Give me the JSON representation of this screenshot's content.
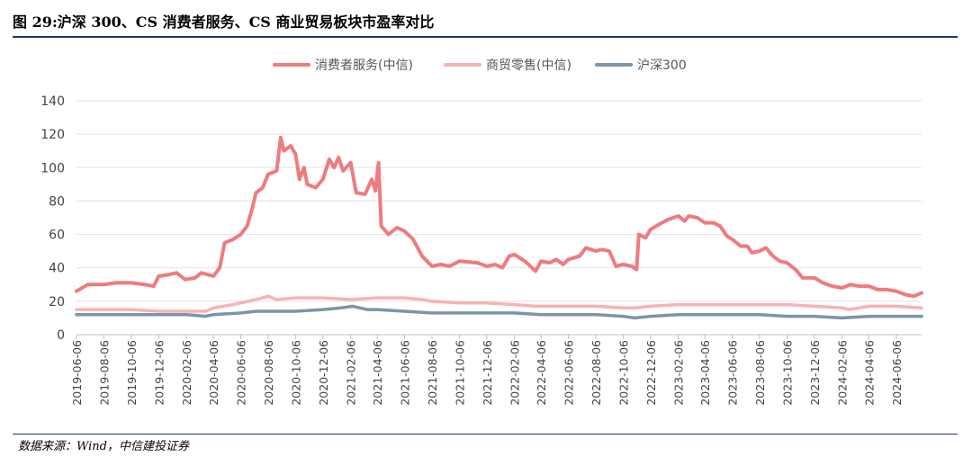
{
  "figure": {
    "title": "图 29:沪深 300、CS 消费者服务、CS 商业贸易板块市盈率对比",
    "source": "数据来源：Wind，中信建投证券"
  },
  "chart_data": {
    "type": "line",
    "title": "图 29:沪深 300、CS 消费者服务、CS 商业贸易板块市盈率对比",
    "xlabel": "",
    "ylabel": "",
    "ylim": [
      0,
      140
    ],
    "yticks": [
      0,
      20,
      40,
      60,
      80,
      100,
      120,
      140
    ],
    "xlim": [
      "2019-06-06",
      "2024-08-01"
    ],
    "xticks": [
      "2019-06-06",
      "2019-08-06",
      "2019-10-06",
      "2019-12-06",
      "2020-02-06",
      "2020-04-06",
      "2020-06-06",
      "2020-08-06",
      "2020-10-06",
      "2020-12-06",
      "2021-02-06",
      "2021-04-06",
      "2021-06-06",
      "2021-08-06",
      "2021-10-06",
      "2021-12-06",
      "2022-02-06",
      "2022-04-06",
      "2022-06-06",
      "2022-08-06",
      "2022-10-06",
      "2022-12-06",
      "2023-02-06",
      "2023-04-06",
      "2023-06-06",
      "2023-08-06",
      "2023-10-06",
      "2023-12-06",
      "2024-02-06",
      "2024-04-06",
      "2024-06-06"
    ],
    "grid": "horizontal",
    "legend_position": "top",
    "series": [
      {
        "name": "消费者服务(中信)",
        "color": "#ee7b7f",
        "points": [
          [
            "2019-06-06",
            26
          ],
          [
            "2019-07-01",
            30
          ],
          [
            "2019-08-06",
            30
          ],
          [
            "2019-09-01",
            31
          ],
          [
            "2019-10-06",
            31
          ],
          [
            "2019-11-05",
            30
          ],
          [
            "2019-11-25",
            29
          ],
          [
            "2019-12-06",
            35
          ],
          [
            "2019-12-31",
            36
          ],
          [
            "2020-01-15",
            37
          ],
          [
            "2020-02-03",
            33
          ],
          [
            "2020-02-25",
            34
          ],
          [
            "2020-03-10",
            37
          ],
          [
            "2020-04-06",
            35
          ],
          [
            "2020-04-20",
            40
          ],
          [
            "2020-05-01",
            55
          ],
          [
            "2020-05-20",
            57
          ],
          [
            "2020-06-06",
            60
          ],
          [
            "2020-06-20",
            65
          ],
          [
            "2020-07-01",
            75
          ],
          [
            "2020-07-10",
            85
          ],
          [
            "2020-07-25",
            88
          ],
          [
            "2020-08-06",
            96
          ],
          [
            "2020-08-25",
            98
          ],
          [
            "2020-09-03",
            118
          ],
          [
            "2020-09-10",
            110
          ],
          [
            "2020-09-25",
            113
          ],
          [
            "2020-10-06",
            108
          ],
          [
            "2020-10-15",
            93
          ],
          [
            "2020-10-25",
            100
          ],
          [
            "2020-11-01",
            90
          ],
          [
            "2020-11-20",
            88
          ],
          [
            "2020-12-06",
            93
          ],
          [
            "2020-12-20",
            105
          ],
          [
            "2020-12-31",
            100
          ],
          [
            "2021-01-10",
            106
          ],
          [
            "2021-01-20",
            98
          ],
          [
            "2021-02-06",
            103
          ],
          [
            "2021-02-18",
            85
          ],
          [
            "2021-03-10",
            84
          ],
          [
            "2021-03-25",
            93
          ],
          [
            "2021-04-02",
            86
          ],
          [
            "2021-04-09",
            103
          ],
          [
            "2021-04-15",
            65
          ],
          [
            "2021-05-01",
            60
          ],
          [
            "2021-05-20",
            64
          ],
          [
            "2021-06-06",
            62
          ],
          [
            "2021-06-25",
            57
          ],
          [
            "2021-07-15",
            47
          ],
          [
            "2021-08-06",
            41
          ],
          [
            "2021-08-25",
            42
          ],
          [
            "2021-09-15",
            41
          ],
          [
            "2021-10-06",
            44
          ],
          [
            "2021-11-15",
            43
          ],
          [
            "2021-12-06",
            41
          ],
          [
            "2021-12-25",
            42
          ],
          [
            "2022-01-10",
            40
          ],
          [
            "2022-01-25",
            47
          ],
          [
            "2022-02-06",
            48
          ],
          [
            "2022-03-01",
            44
          ],
          [
            "2022-03-25",
            38
          ],
          [
            "2022-04-06",
            44
          ],
          [
            "2022-04-25",
            43
          ],
          [
            "2022-05-10",
            45
          ],
          [
            "2022-05-25",
            42
          ],
          [
            "2022-06-06",
            45
          ],
          [
            "2022-07-01",
            47
          ],
          [
            "2022-07-15",
            52
          ],
          [
            "2022-08-06",
            50
          ],
          [
            "2022-08-20",
            51
          ],
          [
            "2022-09-05",
            50
          ],
          [
            "2022-09-20",
            41
          ],
          [
            "2022-10-06",
            42
          ],
          [
            "2022-10-25",
            41
          ],
          [
            "2022-11-05",
            39
          ],
          [
            "2022-11-10",
            60
          ],
          [
            "2022-11-25",
            58
          ],
          [
            "2022-12-06",
            63
          ],
          [
            "2022-12-25",
            66
          ],
          [
            "2023-01-15",
            69
          ],
          [
            "2023-02-06",
            71
          ],
          [
            "2023-02-20",
            68
          ],
          [
            "2023-03-01",
            71
          ],
          [
            "2023-03-20",
            70
          ],
          [
            "2023-04-06",
            67
          ],
          [
            "2023-04-25",
            67
          ],
          [
            "2023-05-10",
            65
          ],
          [
            "2023-05-25",
            59
          ],
          [
            "2023-06-06",
            57
          ],
          [
            "2023-06-25",
            53
          ],
          [
            "2023-07-10",
            53
          ],
          [
            "2023-07-20",
            49
          ],
          [
            "2023-08-06",
            50
          ],
          [
            "2023-08-20",
            52
          ],
          [
            "2023-09-05",
            47
          ],
          [
            "2023-09-20",
            44
          ],
          [
            "2023-10-06",
            43
          ],
          [
            "2023-10-25",
            39
          ],
          [
            "2023-11-10",
            34
          ],
          [
            "2023-12-06",
            34
          ],
          [
            "2023-12-25",
            31
          ],
          [
            "2024-01-15",
            29
          ],
          [
            "2024-02-06",
            28
          ],
          [
            "2024-02-25",
            30
          ],
          [
            "2024-03-15",
            29
          ],
          [
            "2024-04-06",
            29
          ],
          [
            "2024-04-25",
            27
          ],
          [
            "2024-05-15",
            27
          ],
          [
            "2024-06-06",
            26
          ],
          [
            "2024-06-25",
            24
          ],
          [
            "2024-07-15",
            23
          ],
          [
            "2024-08-01",
            25
          ]
        ]
      },
      {
        "name": "商贸零售(中信)",
        "color": "#f7b3b5",
        "points": [
          [
            "2019-06-06",
            15
          ],
          [
            "2019-08-06",
            15
          ],
          [
            "2019-10-06",
            15
          ],
          [
            "2019-12-06",
            14
          ],
          [
            "2020-02-06",
            14
          ],
          [
            "2020-03-20",
            14
          ],
          [
            "2020-04-06",
            16
          ],
          [
            "2020-05-20",
            18
          ],
          [
            "2020-06-06",
            19
          ],
          [
            "2020-07-10",
            21
          ],
          [
            "2020-08-06",
            23
          ],
          [
            "2020-08-25",
            21
          ],
          [
            "2020-10-06",
            22
          ],
          [
            "2020-12-06",
            22
          ],
          [
            "2021-02-06",
            21
          ],
          [
            "2021-04-06",
            22
          ],
          [
            "2021-05-15",
            22
          ],
          [
            "2021-06-06",
            22
          ],
          [
            "2021-07-15",
            21
          ],
          [
            "2021-08-06",
            20
          ],
          [
            "2021-10-06",
            19
          ],
          [
            "2021-12-06",
            19
          ],
          [
            "2022-02-06",
            18
          ],
          [
            "2022-03-25",
            17
          ],
          [
            "2022-04-06",
            17
          ],
          [
            "2022-06-06",
            17
          ],
          [
            "2022-08-06",
            17
          ],
          [
            "2022-10-06",
            16
          ],
          [
            "2022-11-01",
            16
          ],
          [
            "2022-12-06",
            17
          ],
          [
            "2023-02-06",
            18
          ],
          [
            "2023-04-06",
            18
          ],
          [
            "2023-06-06",
            18
          ],
          [
            "2023-08-06",
            18
          ],
          [
            "2023-10-06",
            18
          ],
          [
            "2023-12-06",
            17
          ],
          [
            "2024-02-06",
            16
          ],
          [
            "2024-02-20",
            15
          ],
          [
            "2024-04-06",
            17
          ],
          [
            "2024-06-06",
            17
          ],
          [
            "2024-08-01",
            16
          ]
        ]
      },
      {
        "name": "沪深300",
        "color": "#7b95a8",
        "points": [
          [
            "2019-06-06",
            12
          ],
          [
            "2019-08-06",
            12
          ],
          [
            "2019-10-06",
            12
          ],
          [
            "2019-12-06",
            12
          ],
          [
            "2020-02-06",
            12
          ],
          [
            "2020-03-20",
            11
          ],
          [
            "2020-04-06",
            12
          ],
          [
            "2020-06-06",
            13
          ],
          [
            "2020-07-10",
            14
          ],
          [
            "2020-08-06",
            14
          ],
          [
            "2020-10-06",
            14
          ],
          [
            "2020-12-06",
            15
          ],
          [
            "2021-01-15",
            16
          ],
          [
            "2021-02-10",
            17
          ],
          [
            "2021-03-15",
            15
          ],
          [
            "2021-04-06",
            15
          ],
          [
            "2021-06-06",
            14
          ],
          [
            "2021-08-06",
            13
          ],
          [
            "2021-10-06",
            13
          ],
          [
            "2021-12-06",
            13
          ],
          [
            "2022-02-06",
            13
          ],
          [
            "2022-04-06",
            12
          ],
          [
            "2022-06-06",
            12
          ],
          [
            "2022-08-06",
            12
          ],
          [
            "2022-10-06",
            11
          ],
          [
            "2022-11-01",
            10
          ],
          [
            "2022-12-06",
            11
          ],
          [
            "2023-02-06",
            12
          ],
          [
            "2023-04-06",
            12
          ],
          [
            "2023-06-06",
            12
          ],
          [
            "2023-08-06",
            12
          ],
          [
            "2023-10-06",
            11
          ],
          [
            "2023-12-06",
            11
          ],
          [
            "2024-02-06",
            10
          ],
          [
            "2024-04-06",
            11
          ],
          [
            "2024-06-06",
            11
          ],
          [
            "2024-08-01",
            11
          ]
        ]
      }
    ]
  }
}
